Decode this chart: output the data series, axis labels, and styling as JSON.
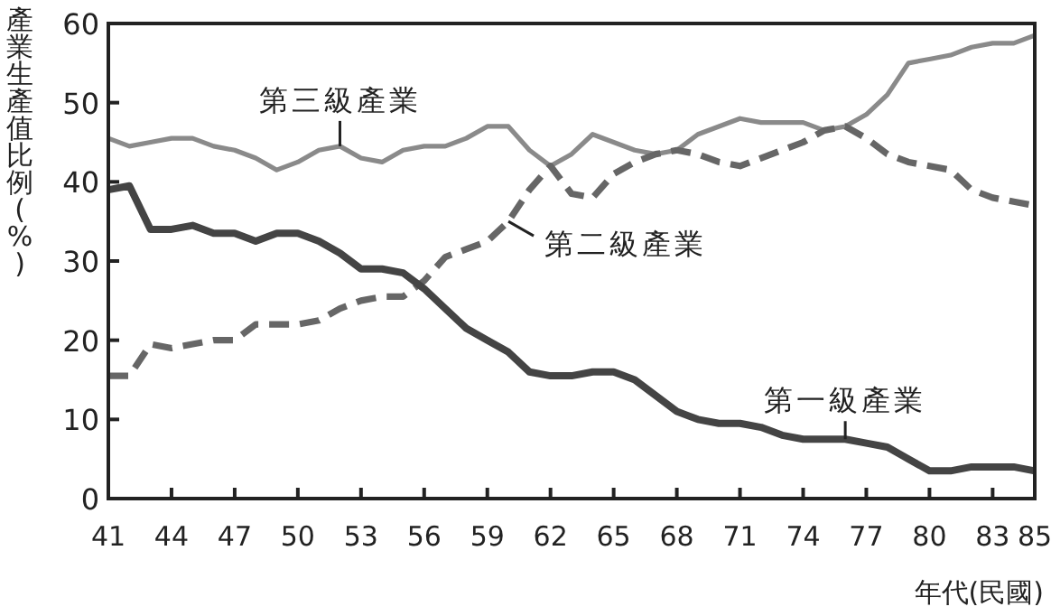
{
  "chart_data": {
    "type": "line",
    "xlabel": "年代(民國)",
    "ylabel": "產業生產值比例(%)",
    "x": [
      41,
      42,
      43,
      44,
      45,
      46,
      47,
      48,
      49,
      50,
      51,
      52,
      53,
      54,
      55,
      56,
      57,
      58,
      59,
      60,
      61,
      62,
      63,
      64,
      65,
      66,
      67,
      68,
      69,
      70,
      71,
      72,
      73,
      74,
      75,
      76,
      77,
      78,
      79,
      80,
      81,
      82,
      83,
      84,
      85
    ],
    "xlim": [
      41,
      85
    ],
    "xticks": [
      41,
      44,
      47,
      50,
      53,
      56,
      59,
      62,
      65,
      68,
      71,
      74,
      77,
      80,
      83,
      85
    ],
    "ylim": [
      0,
      60
    ],
    "yticks": [
      0,
      10,
      20,
      30,
      40,
      50,
      60
    ],
    "series": [
      {
        "color": "#8a8a8a",
        "line_style": "solid",
        "values": [
          45.5,
          44.5,
          45,
          45.5,
          45.5,
          44.5,
          44,
          43,
          41.5,
          42.5,
          44,
          44.5,
          43,
          42.5,
          44,
          44.5,
          44.5,
          45.5,
          47,
          47,
          44,
          42,
          43.5,
          46,
          45,
          44,
          43.5,
          44,
          46,
          47,
          48,
          47.5,
          47.5,
          47.5,
          46.5,
          47,
          48.5,
          51,
          55,
          55.5,
          56,
          57,
          57.5,
          57.5,
          58.5
        ]
      },
      {
        "color": "#666666",
        "line_style": "dashed",
        "values": [
          15.5,
          15.5,
          19.5,
          19,
          19.5,
          20,
          20,
          22,
          22,
          22,
          22.5,
          24,
          25,
          25.5,
          25.5,
          27.5,
          30.5,
          31.5,
          32.5,
          35,
          39,
          42,
          38.5,
          38,
          41,
          42.5,
          43.5,
          44,
          43.5,
          42.5,
          42,
          43,
          44,
          45,
          46.5,
          47,
          45.5,
          43.5,
          42.5,
          42,
          41.5,
          39,
          38,
          37.5,
          37
        ]
      },
      {
        "color": "#444444",
        "line_style": "solid",
        "values": [
          39,
          39.5,
          34,
          34,
          34.5,
          33.5,
          33.5,
          32.5,
          33.5,
          33.5,
          32.5,
          31,
          29,
          29,
          28.5,
          26.5,
          24,
          21.5,
          20,
          18.5,
          16,
          15.5,
          15.5,
          16,
          16,
          15,
          13,
          11,
          10,
          9.5,
          9.5,
          9,
          8,
          7.5,
          7.5,
          7.5,
          7,
          6.5,
          5,
          3.5,
          3.5,
          4,
          4,
          4,
          3.5
        ]
      }
    ],
    "annotations": [
      {
        "text": "第三級產業",
        "x": 52,
        "y": 44.5
      },
      {
        "text": "第二級產業",
        "x": 60,
        "y": 35
      },
      {
        "text": "第一級產業",
        "x": 76,
        "y": 7.5
      }
    ]
  }
}
